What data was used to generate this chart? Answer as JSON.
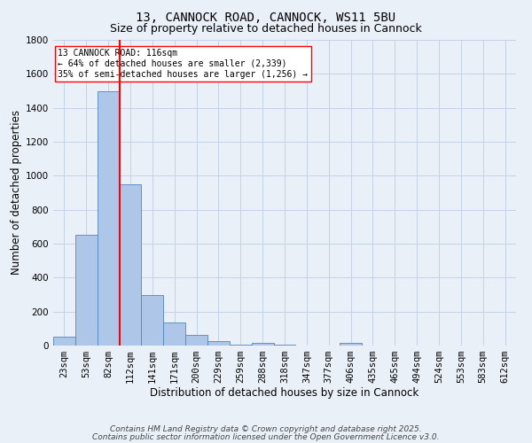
{
  "title1": "13, CANNOCK ROAD, CANNOCK, WS11 5BU",
  "title2": "Size of property relative to detached houses in Cannock",
  "xlabel": "Distribution of detached houses by size in Cannock",
  "ylabel": "Number of detached properties",
  "bar_labels": [
    "23sqm",
    "53sqm",
    "82sqm",
    "112sqm",
    "141sqm",
    "171sqm",
    "200sqm",
    "229sqm",
    "259sqm",
    "288sqm",
    "318sqm",
    "347sqm",
    "377sqm",
    "406sqm",
    "435sqm",
    "465sqm",
    "494sqm",
    "524sqm",
    "553sqm",
    "583sqm",
    "612sqm"
  ],
  "bar_values": [
    50,
    650,
    1500,
    950,
    300,
    135,
    65,
    25,
    5,
    15,
    5,
    0,
    0,
    15,
    0,
    0,
    0,
    0,
    0,
    0,
    0
  ],
  "bar_color": "#aec6e8",
  "bar_edgecolor": "#4f87c0",
  "vline_x": 2.5,
  "vline_color": "red",
  "ylim": [
    0,
    1800
  ],
  "yticks": [
    0,
    200,
    400,
    600,
    800,
    1000,
    1200,
    1400,
    1600,
    1800
  ],
  "annotation_text": "13 CANNOCK ROAD: 116sqm\n← 64% of detached houses are smaller (2,339)\n35% of semi-detached houses are larger (1,256) →",
  "annotation_box_facecolor": "white",
  "annotation_box_edgecolor": "red",
  "footer1": "Contains HM Land Registry data © Crown copyright and database right 2025.",
  "footer2": "Contains public sector information licensed under the Open Government Licence v3.0.",
  "bg_color": "#eaf0f8",
  "grid_color": "#c5d2e5",
  "title1_fontsize": 10,
  "title2_fontsize": 9,
  "axis_label_fontsize": 8.5,
  "tick_fontsize": 7.5,
  "annot_fontsize": 7,
  "footer_fontsize": 6.5
}
